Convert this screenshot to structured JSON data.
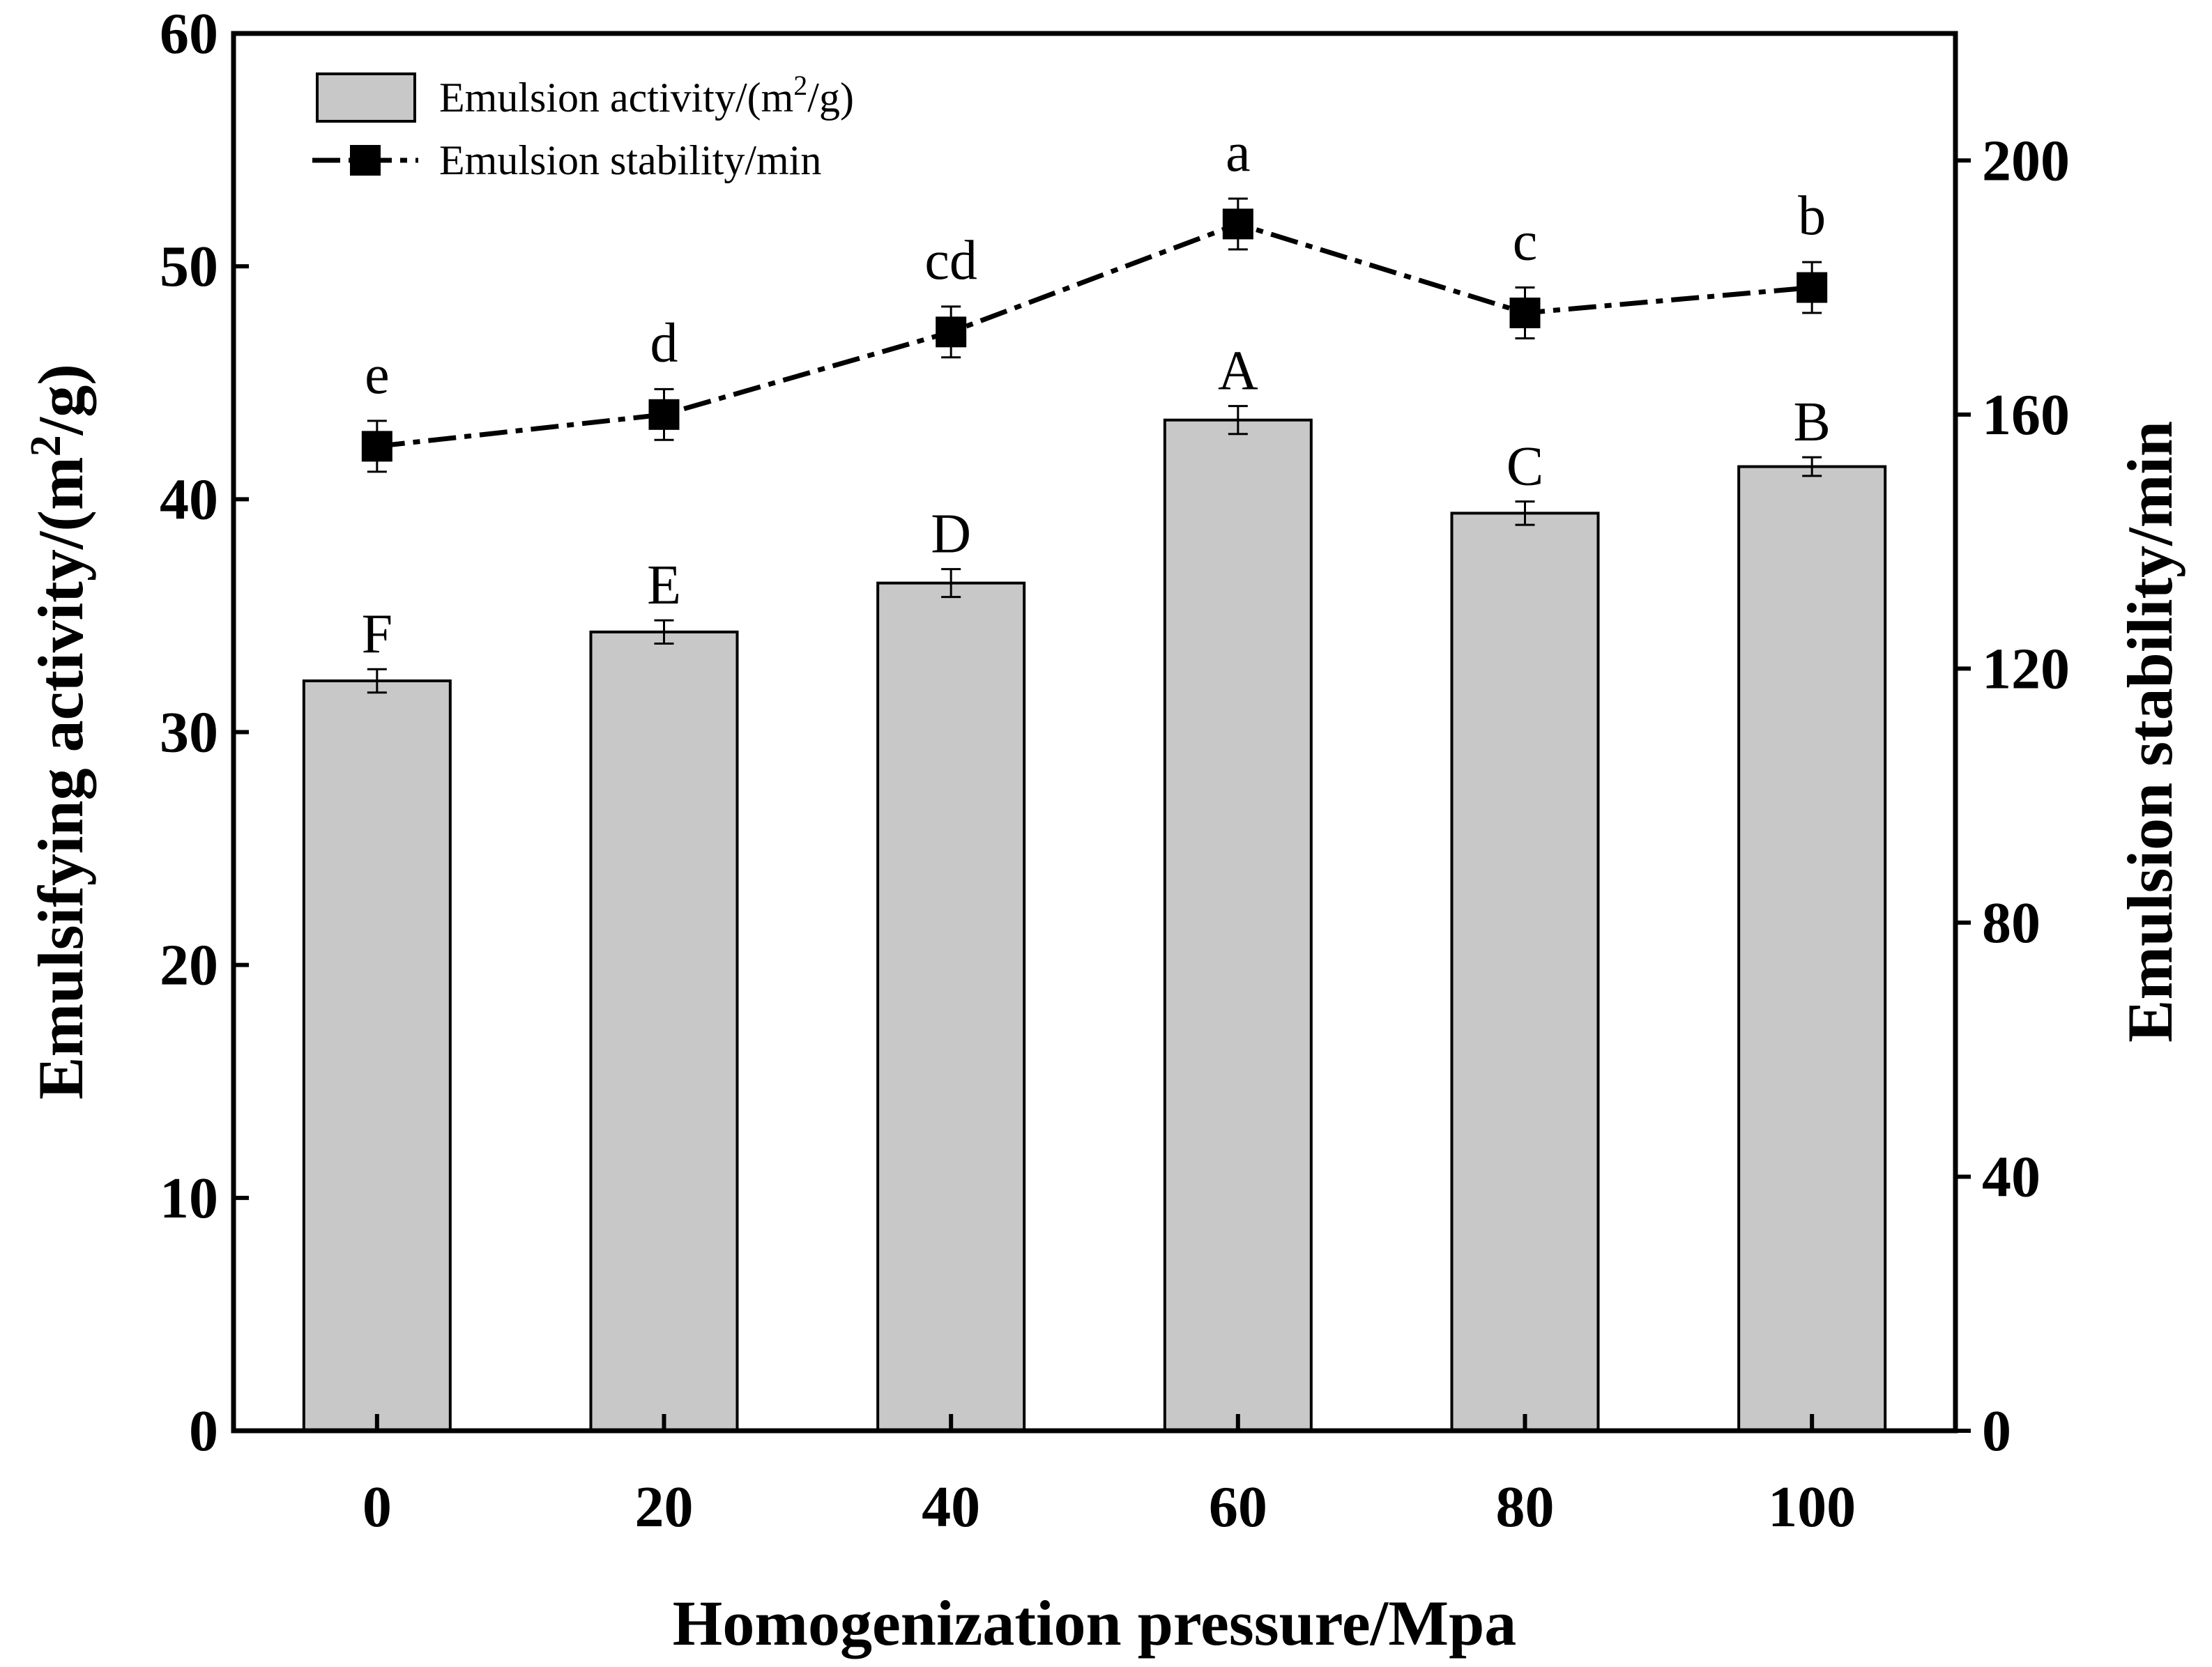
{
  "chart_data": {
    "type": "bar",
    "categories": [
      "0",
      "20",
      "40",
      "60",
      "80",
      "100"
    ],
    "xlabel": "Homogenization pressure/Mpa",
    "ylabel": "Emulsifying activity/(m",
    "ylabel_sup": "2",
    "ylabel_tail": "/g)",
    "ylabel_right": "Emulsion stability/min",
    "ylim": [
      0,
      60
    ],
    "ylim_right": [
      0,
      220
    ],
    "yticks": [
      "0",
      "10",
      "20",
      "30",
      "40",
      "50",
      "60"
    ],
    "yticks_right": [
      "0",
      "40",
      "80",
      "120",
      "160",
      "200"
    ],
    "series": [
      {
        "name": "Emulsion activity/(m2/g)",
        "legend_label": "Emulsion activity/(m",
        "legend_sup": "2",
        "legend_tail": "/g)",
        "kind": "bar",
        "axis": "left",
        "values": [
          32.2,
          34.3,
          36.4,
          43.4,
          39.4,
          41.4
        ],
        "errors": [
          0.5,
          0.5,
          0.6,
          0.6,
          0.5,
          0.4
        ],
        "letters": [
          "F",
          "E",
          "D",
          "A",
          "C",
          "B"
        ],
        "color": "#c8c8c8"
      },
      {
        "name": "Emulsion stability/min",
        "legend_label": "Emulsion stability/min",
        "kind": "line",
        "axis": "right",
        "values": [
          155,
          160,
          173,
          190,
          176,
          180
        ],
        "errors": [
          4,
          4,
          4,
          4,
          4,
          4
        ],
        "letters": [
          "e",
          "d",
          "cd",
          "a",
          "c",
          "b"
        ],
        "color": "#000000"
      }
    ],
    "legend_position": "top-left"
  }
}
